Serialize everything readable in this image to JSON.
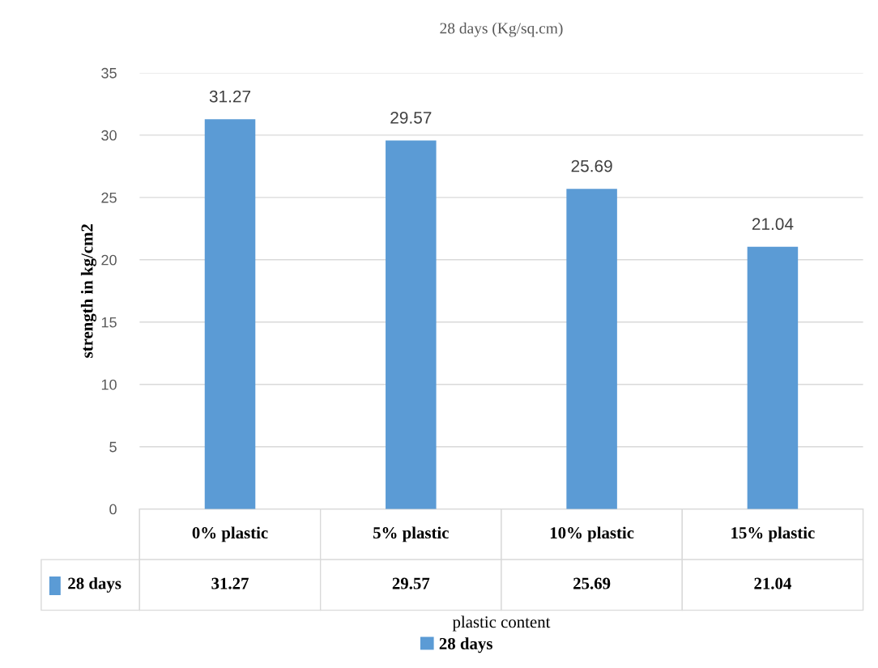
{
  "chart_data": {
    "type": "bar",
    "title": "28 days (Kg/sq.cm)",
    "xlabel": "plastic content",
    "ylabel": "strength in kg/cm2",
    "categories": [
      "0% plastic",
      "5% plastic",
      "10% plastic",
      "15% plastic"
    ],
    "series": [
      {
        "name": "28 days",
        "color": "#5b9bd5",
        "values": [
          31.27,
          29.57,
          25.69,
          21.04
        ]
      }
    ],
    "annotations": [
      "31.27",
      "29.57",
      "25.69",
      "21.04"
    ],
    "ylim": [
      0,
      35
    ],
    "yticks": [
      0,
      5,
      10,
      15,
      20,
      25,
      30,
      35
    ],
    "grid": "y",
    "legend": "bottom",
    "data_labels": true
  }
}
